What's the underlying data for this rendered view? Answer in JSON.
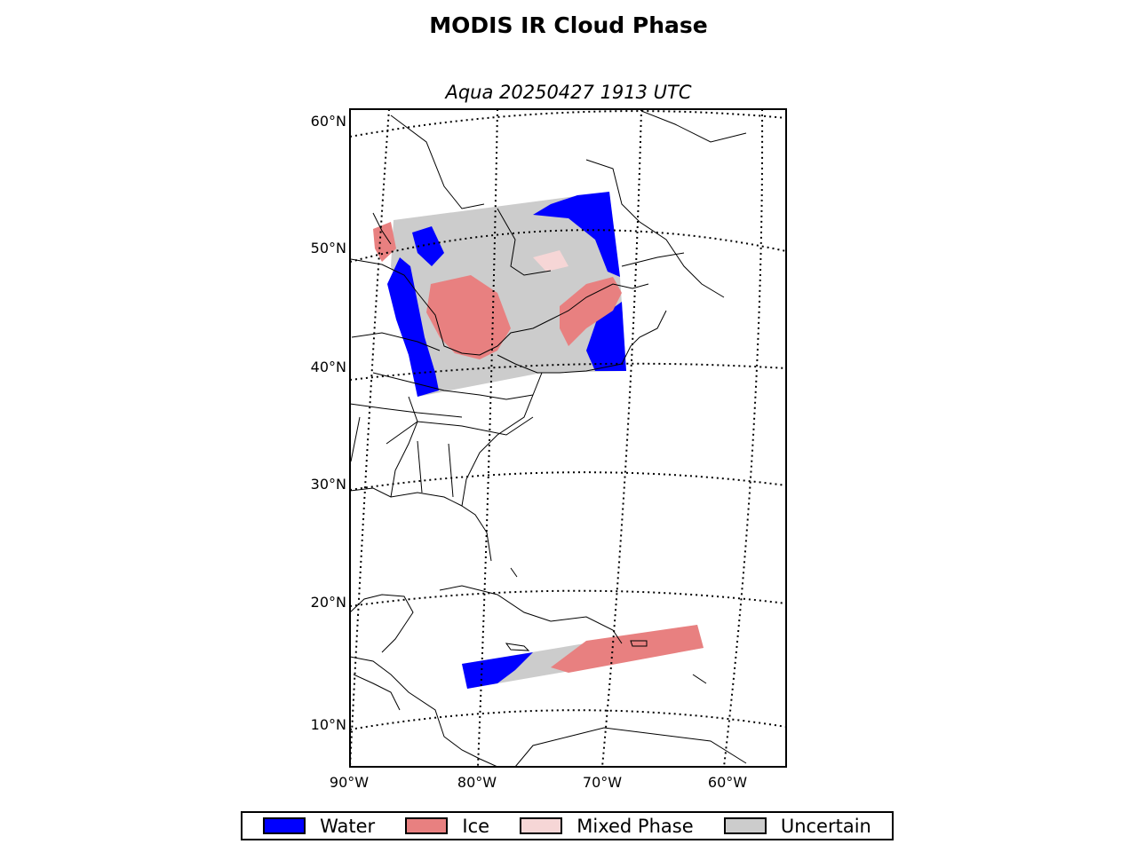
{
  "title": "MODIS IR Cloud Phase",
  "subtitle": "Aqua 20250427 1913 UTC",
  "lat_labels": [
    "60°N",
    "50°N",
    "40°N",
    "30°N",
    "20°N",
    "10°N"
  ],
  "lon_labels": [
    "90°W",
    "80°W",
    "70°W",
    "60°W"
  ],
  "legend": [
    {
      "label": "Water",
      "color": "#0000ff"
    },
    {
      "label": "Ice",
      "color": "#e88080"
    },
    {
      "label": "Mixed Phase",
      "color": "#f6d6d6"
    },
    {
      "label": "Uncertain",
      "color": "#cccccc"
    }
  ],
  "colors": {
    "water": "#0000ff",
    "ice": "#e88080",
    "mixed": "#f6d6d6",
    "uncertain": "#cccccc",
    "coast": "#000000"
  }
}
